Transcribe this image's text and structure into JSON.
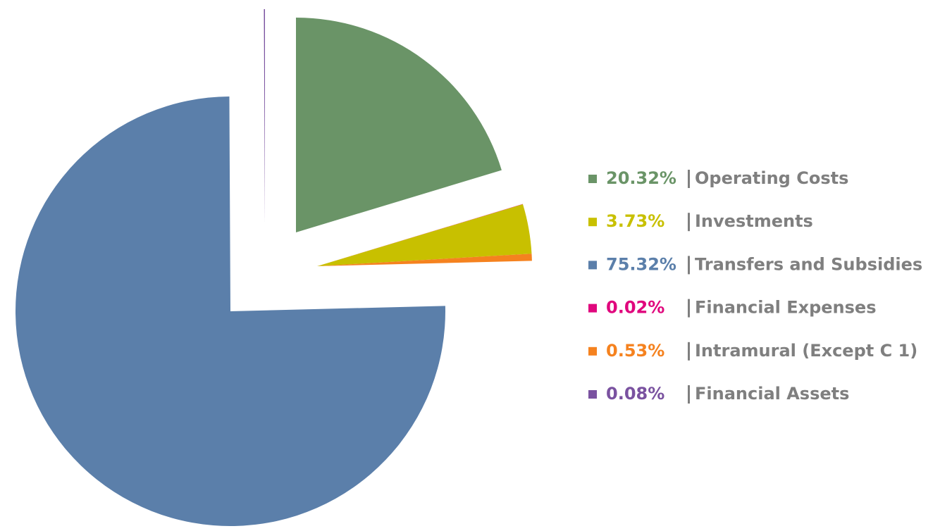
{
  "chart_data": {
    "type": "pie",
    "categories": [
      "Operating Costs",
      "Investments",
      "Transfers and Subsidies",
      "Financial Expenses",
      "Intramural (Except C 1)",
      "Financial Assets"
    ],
    "values": [
      20.32,
      3.73,
      75.32,
      0.02,
      0.53,
      0.08
    ],
    "value_labels": [
      "20.32%",
      "3.73%",
      "75.32%",
      "0.02%",
      "0.53%",
      "0.08%"
    ],
    "colors": [
      "#6a9467",
      "#c8c000",
      "#5b7faa",
      "#e0077d",
      "#f5821f",
      "#7a52a0"
    ],
    "legend": "right"
  }
}
